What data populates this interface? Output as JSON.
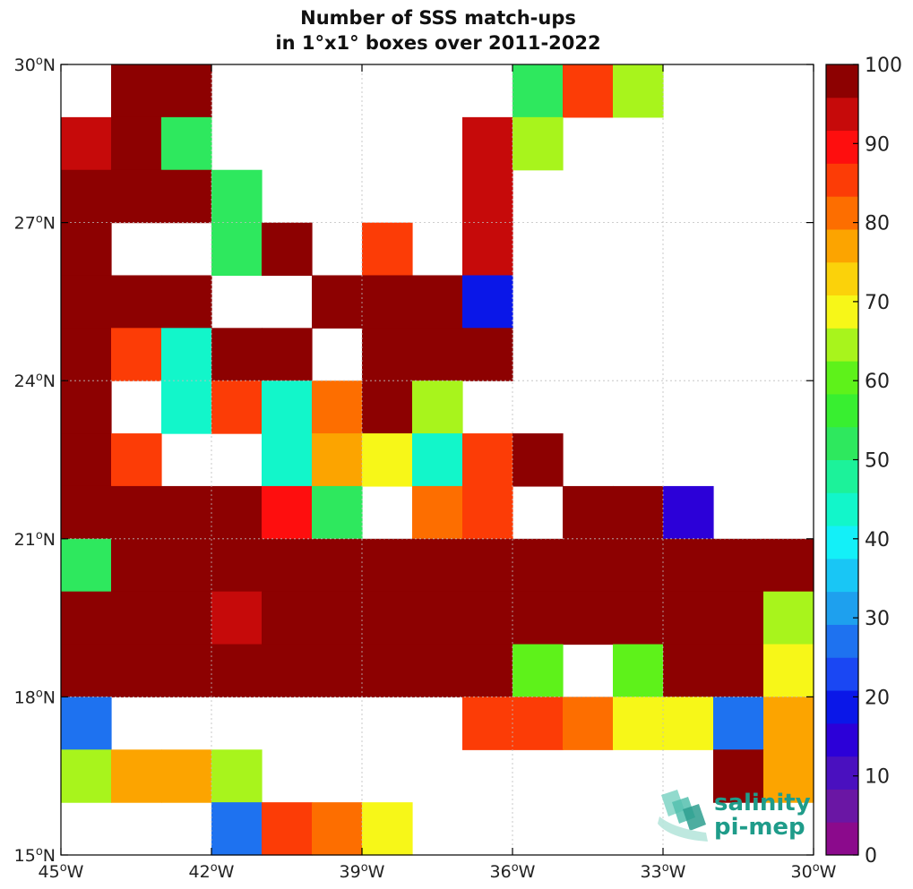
{
  "chart_data": {
    "type": "heatmap",
    "title_lines": [
      "Number of SSS match-ups",
      "in 1°x1° boxes over 2011-2022"
    ],
    "x_ticks": [
      {
        "value": -45,
        "deg": "45",
        "sup": "o",
        "hem": "W"
      },
      {
        "value": -42,
        "deg": "42",
        "sup": "o",
        "hem": "W"
      },
      {
        "value": -39,
        "deg": "39",
        "sup": "o",
        "hem": "W"
      },
      {
        "value": -36,
        "deg": "36",
        "sup": "o",
        "hem": "W"
      },
      {
        "value": -33,
        "deg": "33",
        "sup": "o",
        "hem": "W"
      },
      {
        "value": -30,
        "deg": "30",
        "sup": "o",
        "hem": "W"
      }
    ],
    "y_ticks": [
      {
        "value": 15,
        "deg": "15",
        "sup": "o",
        "hem": "N"
      },
      {
        "value": 18,
        "deg": "18",
        "sup": "o",
        "hem": "N"
      },
      {
        "value": 21,
        "deg": "21",
        "sup": "o",
        "hem": "N"
      },
      {
        "value": 24,
        "deg": "24",
        "sup": "o",
        "hem": "N"
      },
      {
        "value": 27,
        "deg": "27",
        "sup": "o",
        "hem": "N"
      },
      {
        "value": 30,
        "deg": "30",
        "sup": "o",
        "hem": "N"
      }
    ],
    "xlim": [
      -45,
      -30
    ],
    "ylim": [
      15,
      30
    ],
    "grid": true,
    "row_latitudes_top": [
      30,
      29,
      28,
      27,
      26,
      25,
      24,
      23,
      22,
      21,
      20,
      19,
      18,
      17,
      16
    ],
    "col_longitudes_left": [
      -45,
      -44,
      -43,
      -42,
      -41,
      -40,
      -39,
      -38,
      -37,
      -36,
      -35,
      -34,
      -33,
      -32,
      -31
    ],
    "values": [
      [
        null,
        100,
        100,
        null,
        null,
        null,
        null,
        null,
        null,
        50,
        85,
        65,
        null,
        null,
        null
      ],
      [
        95,
        100,
        50,
        null,
        null,
        null,
        null,
        null,
        95,
        65,
        null,
        null,
        null,
        null,
        null
      ],
      [
        100,
        100,
        100,
        50,
        null,
        null,
        null,
        null,
        95,
        null,
        null,
        null,
        null,
        null,
        null
      ],
      [
        100,
        null,
        null,
        50,
        100,
        null,
        85,
        null,
        95,
        null,
        null,
        null,
        null,
        null,
        null
      ],
      [
        100,
        100,
        100,
        null,
        null,
        100,
        100,
        100,
        20,
        null,
        null,
        null,
        null,
        null,
        null
      ],
      [
        100,
        85,
        45,
        100,
        100,
        null,
        100,
        100,
        100,
        null,
        null,
        null,
        null,
        null,
        null
      ],
      [
        100,
        null,
        45,
        85,
        45,
        80,
        100,
        65,
        null,
        null,
        null,
        null,
        null,
        null,
        null
      ],
      [
        100,
        85,
        null,
        null,
        45,
        75,
        70,
        45,
        85,
        100,
        null,
        null,
        null,
        null,
        null
      ],
      [
        100,
        100,
        100,
        100,
        90,
        50,
        null,
        80,
        85,
        null,
        100,
        100,
        15,
        null,
        null
      ],
      [
        50,
        100,
        100,
        100,
        100,
        100,
        100,
        100,
        100,
        100,
        100,
        100,
        100,
        100,
        100
      ],
      [
        100,
        100,
        100,
        95,
        100,
        100,
        100,
        100,
        100,
        100,
        100,
        100,
        100,
        100,
        65
      ],
      [
        100,
        100,
        100,
        100,
        100,
        100,
        100,
        100,
        100,
        60,
        null,
        60,
        100,
        100,
        70
      ],
      [
        25,
        null,
        null,
        null,
        null,
        null,
        null,
        null,
        85,
        85,
        80,
        70,
        70,
        25,
        75
      ],
      [
        65,
        75,
        75,
        65,
        null,
        null,
        null,
        null,
        null,
        null,
        null,
        null,
        null,
        100,
        75
      ],
      [
        null,
        null,
        null,
        25,
        85,
        80,
        70,
        null,
        null,
        null,
        null,
        null,
        null,
        null,
        null
      ]
    ],
    "colorbar": {
      "range": [
        0,
        100
      ],
      "ticks": [
        "0",
        "10",
        "20",
        "30",
        "40",
        "50",
        "60",
        "70",
        "80",
        "90",
        "100"
      ],
      "colors": [
        "#8b0a8c",
        "#6a16a4",
        "#4a10bf",
        "#2c00d8",
        "#0a17e8",
        "#1a47f3",
        "#1e72f0",
        "#1ea0ee",
        "#19c6f5",
        "#13f0f8",
        "#12f6ca",
        "#1cf29a",
        "#2ee85e",
        "#38ef30",
        "#5ef21a",
        "#a8f41c",
        "#f7f718",
        "#fbd20a",
        "#fca400",
        "#fd6e00",
        "#fc3c06",
        "#fe0e0e",
        "#c60a0a",
        "#8d0101"
      ]
    },
    "logo": {
      "line1": "salinity",
      "line2": "pi-mep"
    }
  }
}
